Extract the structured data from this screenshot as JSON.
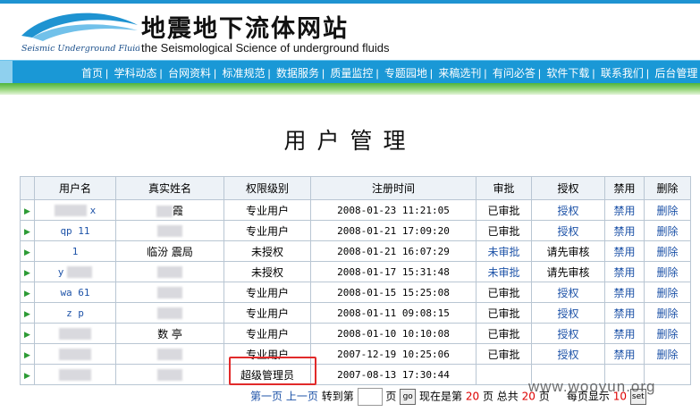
{
  "site": {
    "title": "地震地下流体网站",
    "subtitle": "the Seismological Science of underground fluids",
    "logo_text": "Seismic Underground Fluids"
  },
  "nav": [
    "首页",
    "学科动态",
    "台网资料",
    "标准规范",
    "数据服务",
    "质量监控",
    "专题园地",
    "来稿选刊",
    "有问必答",
    "软件下载",
    "联系我们",
    "后台管理"
  ],
  "page_title": "用户管理",
  "table": {
    "headers": [
      "用户名",
      "真实姓名",
      "权限级别",
      "注册时间",
      "审批",
      "授权",
      "禁用",
      "删除"
    ],
    "rows": [
      {
        "username": "x",
        "realname": "霞",
        "level": "专业用户",
        "time": "2008-01-23 11:21:05",
        "approve": "已审批",
        "auth": "授权",
        "ban": "禁用",
        "del": "删除"
      },
      {
        "username": "qp 11",
        "realname": "",
        "level": "专业用户",
        "time": "2008-01-21 17:09:20",
        "approve": "已审批",
        "auth": "授权",
        "ban": "禁用",
        "del": "删除"
      },
      {
        "username": "1",
        "realname": "临汾 震局",
        "level": "未授权",
        "time": "2008-01-21 16:07:29",
        "approve": "未审批",
        "auth": "请先审核",
        "ban": "禁用",
        "del": "删除"
      },
      {
        "username": "y",
        "realname": "",
        "level": "未授权",
        "time": "2008-01-17 15:31:48",
        "approve": "未审批",
        "auth": "请先审核",
        "ban": "禁用",
        "del": "删除"
      },
      {
        "username": "wa 61",
        "realname": "",
        "level": "专业用户",
        "time": "2008-01-15 15:25:08",
        "approve": "已审批",
        "auth": "授权",
        "ban": "禁用",
        "del": "删除"
      },
      {
        "username": "z p",
        "realname": "",
        "level": "专业用户",
        "time": "2008-01-11 09:08:15",
        "approve": "已审批",
        "auth": "授权",
        "ban": "禁用",
        "del": "删除"
      },
      {
        "username": "",
        "realname": "数 亭",
        "level": "专业用户",
        "time": "2008-01-10 10:10:08",
        "approve": "已审批",
        "auth": "授权",
        "ban": "禁用",
        "del": "删除"
      },
      {
        "username": "",
        "realname": "",
        "level": "专业用户",
        "time": "2007-12-19 10:25:06",
        "approve": "已审批",
        "auth": "授权",
        "ban": "禁用",
        "del": "删除"
      },
      {
        "username": "",
        "realname": "",
        "level": "超级管理员",
        "time": "2007-08-13 17:30:44",
        "approve": "",
        "auth": "",
        "ban": "",
        "del": ""
      }
    ]
  },
  "pager": {
    "first": "第一页",
    "prev": "上一页",
    "goto": "转到第",
    "page_unit": "页",
    "go_btn": "go",
    "now_label": "现在是第",
    "current": "20",
    "total_label": "页 总共",
    "total": "20",
    "total_unit": "页",
    "per_page_label": "每页显示",
    "per_page": "10",
    "set_btn": "set"
  },
  "watermark": "www.wooyun.org",
  "colors": {
    "nav_bg": "#1a98d6",
    "green_bar": "#4fb43a",
    "link": "#1e53a8",
    "highlight": "#e12a2a"
  }
}
